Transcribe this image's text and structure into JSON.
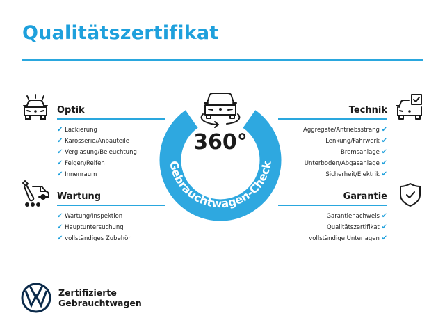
{
  "title": "Qualitätszertifikat",
  "colors": {
    "accent": "#1ea0dc",
    "ring": "#2ea8e0",
    "text": "#1a1a1a"
  },
  "center": {
    "big": "360°",
    "ring_text": "Gebrauchtwagen-Check",
    "icon": "car-rotate-360-icon"
  },
  "check_mark": "✔",
  "sections": {
    "optik": {
      "heading": "Optik",
      "icon": "car-lights-icon",
      "items": [
        "Lackierung",
        "Karosserie/Anbauteile",
        "Verglasung/Beleuchtung",
        "Felgen/Reifen",
        "Innenraum"
      ]
    },
    "wartung": {
      "heading": "Wartung",
      "icon": "service-truck-icon",
      "items": [
        "Wartung/Inspektion",
        "Hauptuntersuchung",
        "vollständiges Zubehör"
      ]
    },
    "technik": {
      "heading": "Technik",
      "icon": "car-checkbox-icon",
      "items": [
        "Aggregate/Antriebsstrang",
        "Lenkung/Fahrwerk",
        "Bremsanlage",
        "Unterboden/Abgasanlage",
        "Sicherheit/Elektrik"
      ]
    },
    "garantie": {
      "heading": "Garantie",
      "icon": "shield-check-icon",
      "items": [
        "Garantienachweis",
        "Qualitätszertifikat",
        "vollständige Unterlagen"
      ]
    }
  },
  "brand": {
    "line1": "Zertifizierte",
    "line2": "Gebrauchtwagen",
    "logo": "vw-logo"
  }
}
